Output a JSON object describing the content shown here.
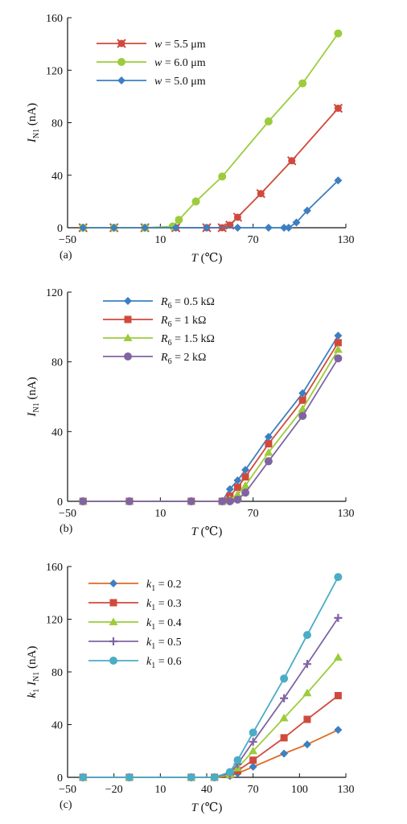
{
  "chart_data": [
    {
      "type": "line",
      "panel_label": "(a)",
      "xlabel": "T (℃)",
      "ylabel": "I_N1 (nA)",
      "ylabel_main": "I",
      "ylabel_sub": "N1",
      "ylabel_unit": " (nA)",
      "xlim": [
        -50,
        130
      ],
      "ylim": [
        0,
        160
      ],
      "xticks": [
        -50,
        10,
        70,
        130
      ],
      "yticks": [
        0,
        40,
        80,
        120,
        160
      ],
      "legend_position": "top-left",
      "series": [
        {
          "name": "w = 5.5 μm",
          "name_var": "w",
          "name_rest": " = 5.5 μm",
          "color": "#d04a3c",
          "marker": "x-circle",
          "points": [
            [
              -40,
              0
            ],
            [
              -20,
              0
            ],
            [
              0,
              0
            ],
            [
              20,
              0
            ],
            [
              40,
              0
            ],
            [
              50,
              0
            ],
            [
              55,
              2
            ],
            [
              60,
              8
            ],
            [
              75,
              26
            ],
            [
              95,
              51
            ],
            [
              125,
              91
            ]
          ]
        },
        {
          "name": "w = 6.0 μm",
          "name_var": "w",
          "name_rest": " = 6.0 μm",
          "color": "#9ccc3c",
          "marker": "circle",
          "points": [
            [
              -40,
              0
            ],
            [
              -20,
              0
            ],
            [
              0,
              0
            ],
            [
              18,
              1
            ],
            [
              22,
              6
            ],
            [
              33,
              20
            ],
            [
              50,
              39
            ],
            [
              80,
              81
            ],
            [
              102,
              110
            ],
            [
              125,
              148
            ]
          ]
        },
        {
          "name": "w = 5.0 μm",
          "name_var": "w",
          "name_rest": " = 5.0 μm",
          "color": "#3d7fc1",
          "marker": "diamond",
          "points": [
            [
              -40,
              0
            ],
            [
              -20,
              0
            ],
            [
              0,
              0
            ],
            [
              20,
              0
            ],
            [
              40,
              0
            ],
            [
              60,
              0
            ],
            [
              80,
              0
            ],
            [
              90,
              0
            ],
            [
              93,
              0
            ],
            [
              98,
              4
            ],
            [
              105,
              13
            ],
            [
              125,
              36
            ]
          ]
        }
      ]
    },
    {
      "type": "line",
      "panel_label": "(b)",
      "xlabel": "T (℃)",
      "ylabel": "I_N1 (nA)",
      "ylabel_main": "I",
      "ylabel_sub": "N1",
      "ylabel_unit": " (nA)",
      "xlim": [
        -50,
        130
      ],
      "ylim": [
        0,
        120
      ],
      "xticks": [
        -50,
        10,
        70,
        130
      ],
      "yticks": [
        0,
        40,
        80,
        120
      ],
      "legend_position": "top-left",
      "series": [
        {
          "name": "R6 = 0.5 kΩ",
          "name_var": "R",
          "name_sub": "6",
          "name_rest": " = 0.5 kΩ",
          "color": "#3d7fc1",
          "marker": "diamond",
          "points": [
            [
              -40,
              0
            ],
            [
              -10,
              0
            ],
            [
              30,
              0
            ],
            [
              50,
              0
            ],
            [
              55,
              7
            ],
            [
              60,
              12
            ],
            [
              65,
              18
            ],
            [
              80,
              37
            ],
            [
              102,
              62
            ],
            [
              125,
              95
            ]
          ]
        },
        {
          "name": "R6 = 1 kΩ",
          "name_var": "R",
          "name_sub": "6",
          "name_rest": " = 1 kΩ",
          "color": "#d04a3c",
          "marker": "square",
          "points": [
            [
              -40,
              0
            ],
            [
              -10,
              0
            ],
            [
              30,
              0
            ],
            [
              50,
              0
            ],
            [
              55,
              3
            ],
            [
              60,
              8
            ],
            [
              65,
              14
            ],
            [
              80,
              33
            ],
            [
              102,
              58
            ],
            [
              125,
              91
            ]
          ]
        },
        {
          "name": "R6 = 1.5 kΩ",
          "name_var": "R",
          "name_sub": "6",
          "name_rest": " = 1.5 kΩ",
          "color": "#9ccc3c",
          "marker": "triangle",
          "points": [
            [
              -40,
              0
            ],
            [
              -10,
              0
            ],
            [
              30,
              0
            ],
            [
              50,
              0
            ],
            [
              55,
              1
            ],
            [
              60,
              4
            ],
            [
              65,
              9
            ],
            [
              80,
              28
            ],
            [
              102,
              53
            ],
            [
              125,
              87
            ]
          ]
        },
        {
          "name": "R6 = 2 kΩ",
          "name_var": "R",
          "name_sub": "6",
          "name_rest": " = 2 kΩ",
          "color": "#8064a2",
          "marker": "circle",
          "points": [
            [
              -40,
              0
            ],
            [
              -10,
              0
            ],
            [
              30,
              0
            ],
            [
              50,
              0
            ],
            [
              55,
              0
            ],
            [
              60,
              1
            ],
            [
              65,
              5
            ],
            [
              80,
              23
            ],
            [
              102,
              49
            ],
            [
              125,
              82
            ]
          ]
        }
      ]
    },
    {
      "type": "line",
      "panel_label": "(c)",
      "xlabel": "T (℃)",
      "ylabel": "k1 I_N1 (nA)",
      "ylabel_main": "k",
      "ylabel_k_sub": "1",
      "ylabel_main2": "I",
      "ylabel_sub": "N1",
      "ylabel_unit": " (nA)",
      "xlim": [
        -50,
        130
      ],
      "ylim": [
        0,
        160
      ],
      "xticks": [
        -50,
        -20,
        10,
        40,
        70,
        100,
        130
      ],
      "yticks": [
        0,
        40,
        80,
        120,
        160
      ],
      "legend_position": "top-left",
      "series": [
        {
          "name": "k1 = 0.2",
          "name_var": "k",
          "name_sub": "1",
          "name_rest": " = 0.2",
          "color": "#3d7fc1",
          "line_color": "#e06b25",
          "marker": "diamond",
          "points": [
            [
              -40,
              0
            ],
            [
              -10,
              0
            ],
            [
              30,
              0
            ],
            [
              45,
              0
            ],
            [
              55,
              1
            ],
            [
              60,
              3
            ],
            [
              70,
              8
            ],
            [
              90,
              18
            ],
            [
              105,
              25
            ],
            [
              125,
              36
            ]
          ]
        },
        {
          "name": "k1 = 0.3",
          "name_var": "k",
          "name_sub": "1",
          "name_rest": " = 0.3",
          "color": "#d04a3c",
          "marker": "square",
          "points": [
            [
              -40,
              0
            ],
            [
              -10,
              0
            ],
            [
              30,
              0
            ],
            [
              45,
              0
            ],
            [
              55,
              2
            ],
            [
              60,
              5
            ],
            [
              70,
              13
            ],
            [
              90,
              30
            ],
            [
              105,
              44
            ],
            [
              125,
              62
            ]
          ]
        },
        {
          "name": "k1 = 0.4",
          "name_var": "k",
          "name_sub": "1",
          "name_rest": " = 0.4",
          "color": "#9ccc3c",
          "marker": "triangle",
          "points": [
            [
              -40,
              0
            ],
            [
              -10,
              0
            ],
            [
              30,
              0
            ],
            [
              45,
              0
            ],
            [
              55,
              2
            ],
            [
              60,
              7
            ],
            [
              70,
              20
            ],
            [
              90,
              45
            ],
            [
              105,
              64
            ],
            [
              125,
              91
            ]
          ]
        },
        {
          "name": "k1 = 0.5",
          "name_var": "k",
          "name_sub": "1",
          "name_rest": " = 0.5",
          "color": "#8064a2",
          "marker": "plus",
          "points": [
            [
              -40,
              0
            ],
            [
              -10,
              0
            ],
            [
              30,
              0
            ],
            [
              45,
              0
            ],
            [
              55,
              3
            ],
            [
              60,
              10
            ],
            [
              70,
              27
            ],
            [
              90,
              60
            ],
            [
              105,
              86
            ],
            [
              125,
              121
            ]
          ]
        },
        {
          "name": "k1 = 0.6",
          "name_var": "k",
          "name_sub": "1",
          "name_rest": " = 0.6",
          "color": "#4bacc6",
          "marker": "circle",
          "points": [
            [
              -40,
              0
            ],
            [
              -10,
              0
            ],
            [
              30,
              0
            ],
            [
              45,
              0
            ],
            [
              55,
              4
            ],
            [
              60,
              13
            ],
            [
              70,
              34
            ],
            [
              90,
              75
            ],
            [
              105,
              108
            ],
            [
              125,
              152
            ]
          ]
        }
      ]
    }
  ]
}
